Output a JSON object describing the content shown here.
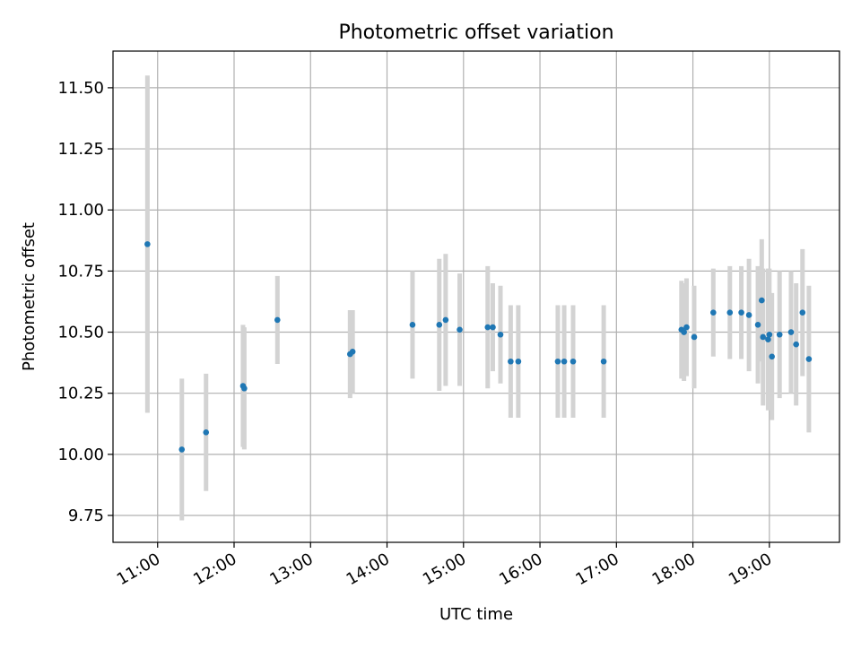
{
  "chart_data": {
    "type": "scatter",
    "title": "Photometric offset variation",
    "xlabel": "UTC time",
    "ylabel": "Photometric offset",
    "xlim": [
      "10:25",
      "19:55"
    ],
    "ylim": [
      9.64,
      11.65
    ],
    "x_ticks": [
      "11:00",
      "12:00",
      "13:00",
      "14:00",
      "15:00",
      "16:00",
      "17:00",
      "18:00",
      "19:00"
    ],
    "y_ticks": [
      "9.75",
      "10.00",
      "10.25",
      "10.50",
      "10.75",
      "11.00",
      "11.25",
      "11.50"
    ],
    "grid": true,
    "colors": {
      "marker": "#1f77b4",
      "errorbar": "#d3d3d3",
      "grid": "#b0b0b0"
    },
    "points": [
      {
        "x": "10:52",
        "y": 10.86,
        "err": 0.69
      },
      {
        "x": "11:19",
        "y": 10.02,
        "err": 0.29
      },
      {
        "x": "11:38",
        "y": 10.09,
        "err": 0.24
      },
      {
        "x": "12:07",
        "y": 10.28,
        "err": 0.25
      },
      {
        "x": "12:08",
        "y": 10.27,
        "err": 0.25
      },
      {
        "x": "12:34",
        "y": 10.55,
        "err": 0.18
      },
      {
        "x": "13:31",
        "y": 10.41,
        "err": 0.18
      },
      {
        "x": "13:33",
        "y": 10.42,
        "err": 0.17
      },
      {
        "x": "14:20",
        "y": 10.53,
        "err": 0.22
      },
      {
        "x": "14:41",
        "y": 10.53,
        "err": 0.27
      },
      {
        "x": "14:46",
        "y": 10.55,
        "err": 0.27
      },
      {
        "x": "14:57",
        "y": 10.51,
        "err": 0.23
      },
      {
        "x": "15:19",
        "y": 10.52,
        "err": 0.25
      },
      {
        "x": "15:23",
        "y": 10.52,
        "err": 0.18
      },
      {
        "x": "15:29",
        "y": 10.49,
        "err": 0.2
      },
      {
        "x": "15:37",
        "y": 10.38,
        "err": 0.23
      },
      {
        "x": "15:43",
        "y": 10.38,
        "err": 0.23
      },
      {
        "x": "16:14",
        "y": 10.38,
        "err": 0.23
      },
      {
        "x": "16:19",
        "y": 10.38,
        "err": 0.23
      },
      {
        "x": "16:26",
        "y": 10.38,
        "err": 0.23
      },
      {
        "x": "16:50",
        "y": 10.38,
        "err": 0.23
      },
      {
        "x": "17:51",
        "y": 10.51,
        "err": 0.2
      },
      {
        "x": "17:53",
        "y": 10.5,
        "err": 0.2
      },
      {
        "x": "17:55",
        "y": 10.52,
        "err": 0.2
      },
      {
        "x": "18:01",
        "y": 10.48,
        "err": 0.21
      },
      {
        "x": "18:16",
        "y": 10.58,
        "err": 0.18
      },
      {
        "x": "18:29",
        "y": 10.58,
        "err": 0.19
      },
      {
        "x": "18:38",
        "y": 10.58,
        "err": 0.19
      },
      {
        "x": "18:44",
        "y": 10.57,
        "err": 0.23
      },
      {
        "x": "18:51",
        "y": 10.53,
        "err": 0.24
      },
      {
        "x": "18:54",
        "y": 10.63,
        "err": 0.25
      },
      {
        "x": "18:55",
        "y": 10.48,
        "err": 0.28
      },
      {
        "x": "18:59",
        "y": 10.47,
        "err": 0.29
      },
      {
        "x": "19:00",
        "y": 10.49,
        "err": 0.27
      },
      {
        "x": "19:02",
        "y": 10.4,
        "err": 0.26
      },
      {
        "x": "19:08",
        "y": 10.49,
        "err": 0.26
      },
      {
        "x": "19:17",
        "y": 10.5,
        "err": 0.25
      },
      {
        "x": "19:21",
        "y": 10.45,
        "err": 0.25
      },
      {
        "x": "19:26",
        "y": 10.58,
        "err": 0.26
      },
      {
        "x": "19:31",
        "y": 10.39,
        "err": 0.3
      }
    ]
  }
}
